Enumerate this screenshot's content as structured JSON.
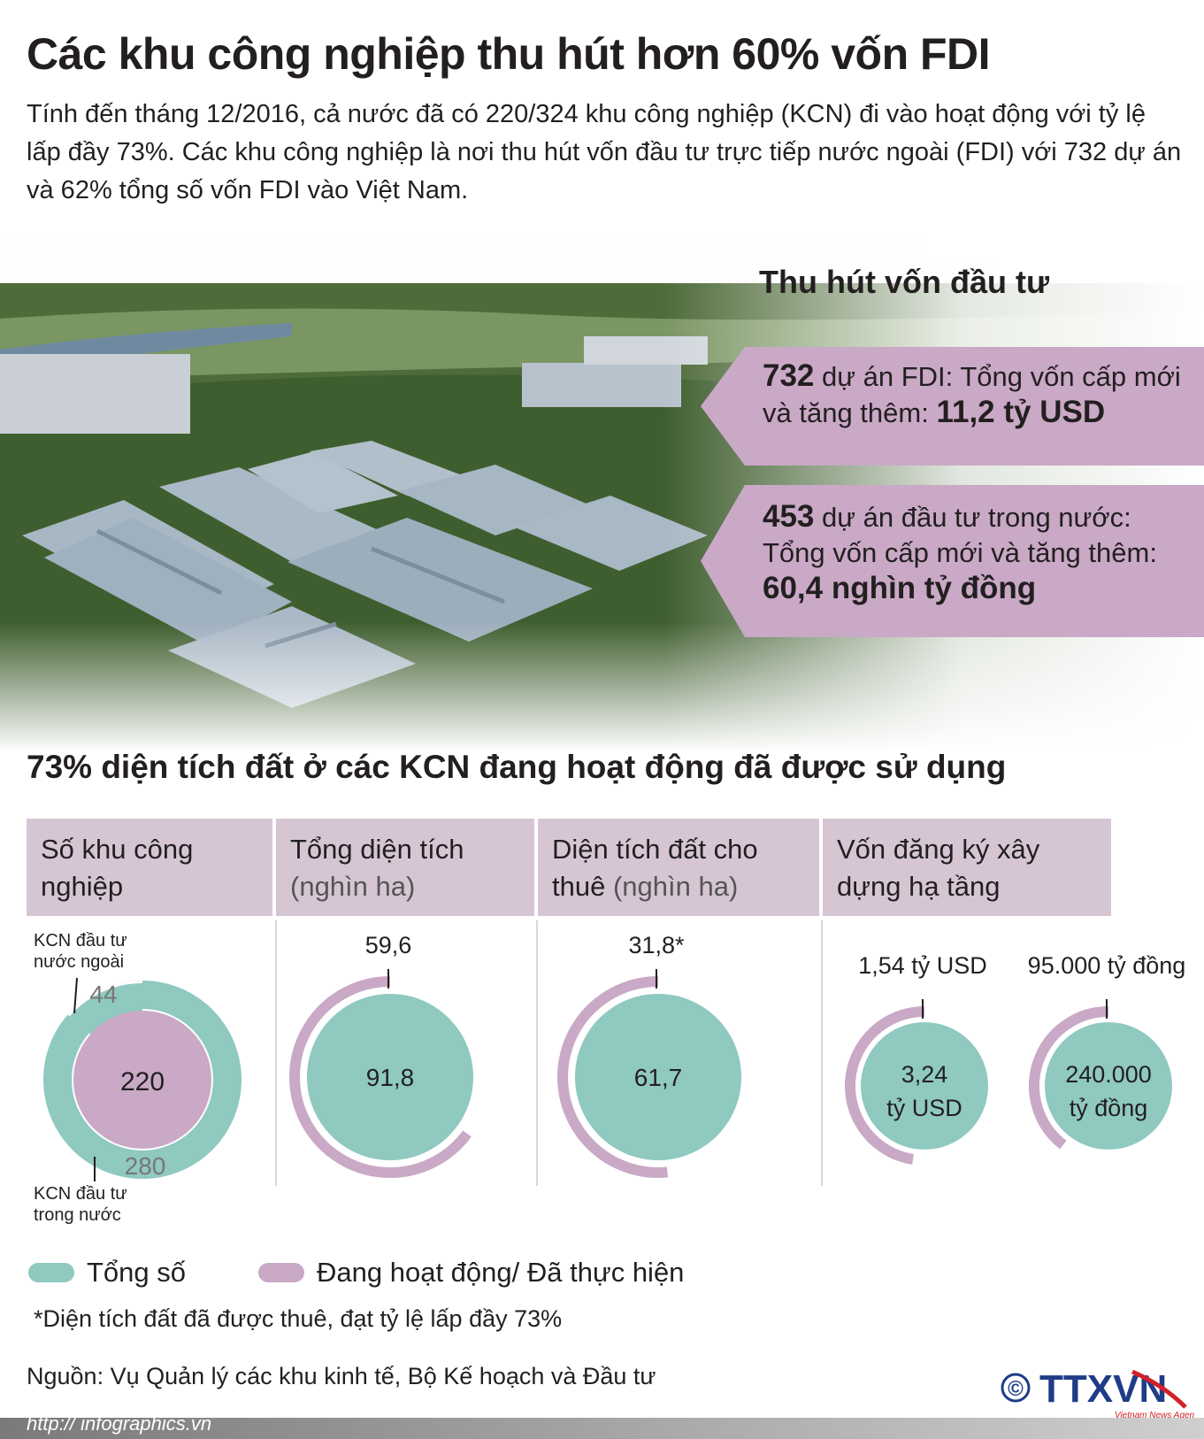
{
  "title": "Các khu công nghiệp thu hút hơn 60% vốn FDI",
  "intro": "Tính đến tháng 12/2016, cả nước đã có 220/324 khu công nghiệp (KCN) đi vào hoạt động với tỷ lệ lấp đầy 73%. Các khu công nghiệp là nơi thu hút vốn đầu tư trực tiếp nước ngoài (FDI) với 732 dự án và 62% tổng số vốn FDI vào Việt Nam.",
  "investment": {
    "title": "Thu hút vốn đầu tư",
    "fdi": {
      "count": "732",
      "text": " dự án FDI: Tổng vốn cấp mới và tăng thêm: ",
      "value": "11,2 tỷ USD"
    },
    "domestic": {
      "count": "453",
      "text": " dự án đầu tư trong nước: Tổng vốn cấp mới và tăng thêm:",
      "value": "60,4 nghìn tỷ đồng"
    }
  },
  "section_title": "73% diện tích đất ở các KCN đang hoạt động đã được sử dụng",
  "headers": [
    {
      "main": "Số khu công nghiệp",
      "unit": ""
    },
    {
      "main": "Tổng diện tích ",
      "unit": "(nghìn ha)"
    },
    {
      "main": "Diện tích đất cho thuê ",
      "unit": "(nghìn ha)"
    },
    {
      "main": "Vốn đăng ký xây dựng hạ tầng",
      "unit": ""
    }
  ],
  "legend": {
    "total": "Tổng số",
    "active": "Đang hoạt động/ Đã thực hiện"
  },
  "note": "*Diện tích đất đã được thuê, đạt tỷ lệ lấp đầy 73%",
  "source": "Nguồn: Vụ Quản lý các khu kinh tế, Bộ Kế hoạch và Đầu tư",
  "footer_url": "http:// infographics.vn",
  "logo": {
    "copyright": "©",
    "name": "TTXVN",
    "tagline": "Vietnam News Agency"
  },
  "colors": {
    "total": "#8fc9c0",
    "active": "#c9a9c6",
    "header": "#d6c6d4"
  },
  "chart_data": [
    {
      "type": "pie",
      "title": "Số khu công nghiệp",
      "total": {
        "label": "Tổng số",
        "value": 324
      },
      "segments": [
        {
          "name": "KCN đầu tư nước ngoài",
          "value": 44,
          "label": "44"
        },
        {
          "name": "KCN đầu tư trong nước",
          "value": 280,
          "label": "280"
        }
      ],
      "active": {
        "value": 220,
        "label": "220"
      },
      "annotations": [
        "KCN đầu tư nước ngoài",
        "KCN đầu tư trong nước"
      ]
    },
    {
      "type": "pie",
      "title": "Tổng diện tích (nghìn ha)",
      "total": 91.8,
      "total_label": "91,8",
      "active": 59.6,
      "active_label": "59,6"
    },
    {
      "type": "pie",
      "title": "Diện tích đất cho thuê (nghìn ha)",
      "total": 61.7,
      "total_label": "61,7",
      "active": 31.8,
      "active_label": "31,8*"
    },
    {
      "type": "pie",
      "title": "Vốn đăng ký xây dựng hạ tầng",
      "total": 3.24,
      "total_label": "3,24",
      "total_unit": "tỷ USD",
      "active": 1.54,
      "active_label": "1,54 tỷ USD"
    },
    {
      "type": "pie",
      "title": "Vốn đăng ký xây dựng hạ tầng",
      "total": 240000,
      "total_label": "240.000",
      "total_unit": "tỷ đồng",
      "active": 95000,
      "active_label": "95.000 tỷ đồng"
    }
  ]
}
